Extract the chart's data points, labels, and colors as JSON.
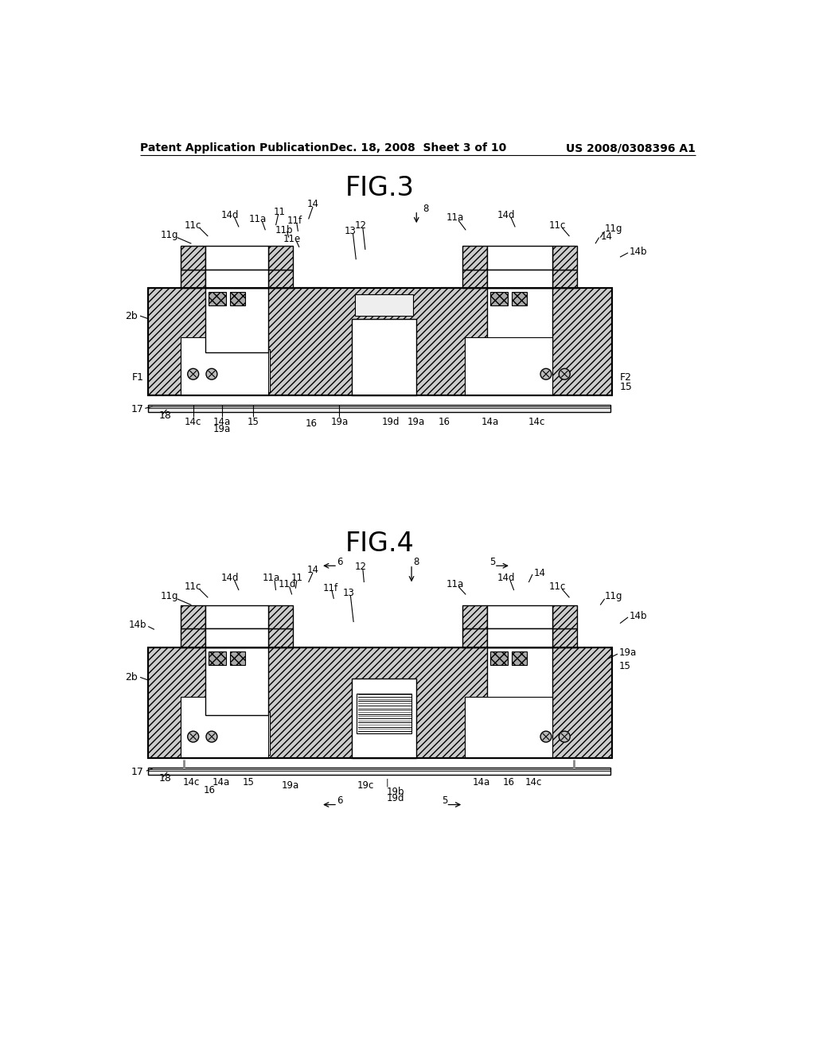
{
  "header_left": "Patent Application Publication",
  "header_mid": "Dec. 18, 2008  Sheet 3 of 10",
  "header_right": "US 2008/0308396 A1",
  "fig3_title": "FIG.3",
  "fig4_title": "FIG.4",
  "bg": "#ffffff"
}
